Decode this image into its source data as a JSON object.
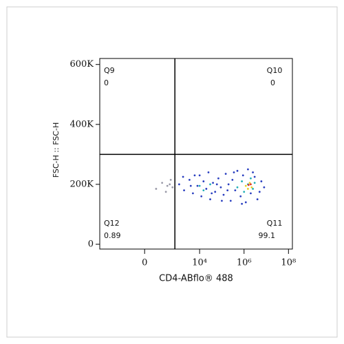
{
  "chart_data": {
    "type": "scatter",
    "x_label": "CD4-ABflo® 488",
    "y_label": "FSC-H :: FSC-H",
    "xscale": "biexponential",
    "xlim": [
      -3500,
      150000000
    ],
    "ylim": [
      -16000,
      620000
    ],
    "xticks": [
      {
        "value": 0,
        "label": "0"
      },
      {
        "value": 10000,
        "label": "10⁴"
      },
      {
        "value": 1000000,
        "label": "10⁶"
      },
      {
        "value": 100000000,
        "label": "10⁸"
      }
    ],
    "yticks": [
      0,
      {
        "value": 200000,
        "label": "200K"
      },
      {
        "value": 400000,
        "label": "400K"
      },
      {
        "value": 600000,
        "label": "600K"
      }
    ],
    "gates": {
      "x": 770,
      "y": 300000
    },
    "quadrants": [
      {
        "name": "Q9",
        "value": 0,
        "corner": "top-left"
      },
      {
        "name": "Q10",
        "value": 0,
        "corner": "top-right"
      },
      {
        "name": "Q12",
        "value": 0.89,
        "corner": "bottom-left"
      },
      {
        "name": "Q11",
        "value": 99.1,
        "corner": "bottom-right"
      }
    ],
    "series": [
      {
        "color": "#9a9aa8",
        "x": [
          200,
          350,
          100,
          500,
          600,
          300,
          450
        ],
        "y": [
          205000,
          195000,
          185000,
          215000,
          190000,
          175000,
          200000
        ]
      },
      {
        "color": "#2a3fc0",
        "x": [
          1200,
          2000,
          3500,
          5000,
          6000,
          8000,
          12000,
          15000,
          20000,
          25000,
          30000,
          40000,
          50000,
          70000,
          90000,
          120000,
          150000,
          200000,
          250000,
          300000,
          400000,
          500000,
          700000,
          900000,
          1200000,
          1500000,
          2000000,
          3000000,
          4000000,
          6000000,
          8000000,
          1800,
          4000,
          10000,
          35000,
          60000,
          100000,
          180000,
          350000,
          800000,
          2500000,
          5000000
        ],
        "y": [
          200000,
          180000,
          215000,
          170000,
          230000,
          195000,
          160000,
          210000,
          185000,
          240000,
          150000,
          205000,
          175000,
          220000,
          190000,
          165000,
          235000,
          200000,
          145000,
          215000,
          180000,
          245000,
          160000,
          230000,
          140000,
          250000,
          170000,
          225000,
          150000,
          210000,
          190000,
          225000,
          195000,
          230000,
          170000,
          200000,
          145000,
          180000,
          240000,
          135000,
          240000,
          175000
        ]
      },
      {
        "color": "#22b0b8",
        "x": [
          10000,
          15000,
          30000,
          500000,
          800000,
          1000000,
          1500000,
          2500000,
          3000000,
          2000000
        ],
        "y": [
          195000,
          180000,
          200000,
          190000,
          210000,
          175000,
          200000,
          185000,
          205000,
          220000
        ]
      },
      {
        "color": "#e8d020",
        "x": [
          1200000,
          1800000,
          2200000,
          1500000
        ],
        "y": [
          195000,
          205000,
          190000,
          185000
        ]
      },
      {
        "color": "#e03020",
        "x": [
          1600000,
          2000000
        ],
        "y": [
          198000,
          200000
        ]
      }
    ]
  }
}
